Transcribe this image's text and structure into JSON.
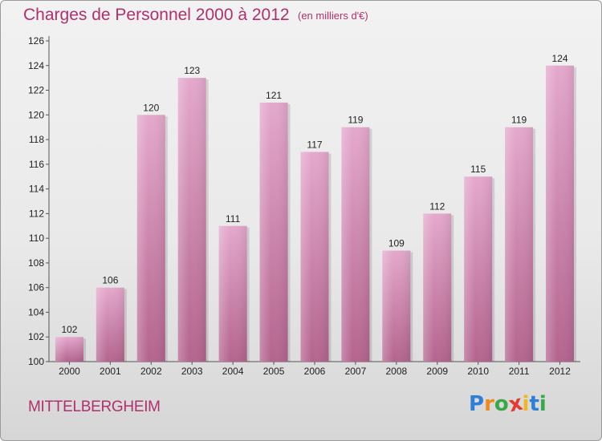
{
  "header": {
    "title": "Charges de Personnel 2000 à 2012",
    "subtitle": "(en milliers d'€)"
  },
  "commune": "MITTELBERGHEIM",
  "logo": {
    "letters": [
      "P",
      "r",
      "o",
      "x",
      "i",
      "t",
      "i"
    ],
    "colors": [
      "#2f7fd6",
      "#f08a1c",
      "#3aa84a",
      "#e43a2f",
      "#f2b61e",
      "#2f7fd6",
      "#3aa84a"
    ]
  },
  "colors": {
    "bar_light": "#e4a8cc",
    "bar_dark": "#b4648e",
    "text_accent": "#b0306e"
  },
  "chart_data": {
    "type": "bar",
    "categories": [
      "2000",
      "2001",
      "2002",
      "2003",
      "2004",
      "2005",
      "2006",
      "2007",
      "2008",
      "2009",
      "2010",
      "2011",
      "2012"
    ],
    "values": [
      102,
      106,
      120,
      123,
      111,
      121,
      117,
      119,
      109,
      112,
      115,
      119,
      124
    ],
    "data_labels": [
      "102",
      "106",
      "120",
      "123",
      "111",
      "121",
      "117",
      "119",
      "109",
      "112",
      "115",
      "119",
      "124"
    ],
    "yticks": [
      "100",
      "102",
      "104",
      "106",
      "108",
      "110",
      "112",
      "114",
      "116",
      "118",
      "120",
      "122",
      "124",
      "126"
    ],
    "ylim": [
      100,
      126
    ],
    "grid": false,
    "xlabel": "",
    "ylabel": ""
  }
}
